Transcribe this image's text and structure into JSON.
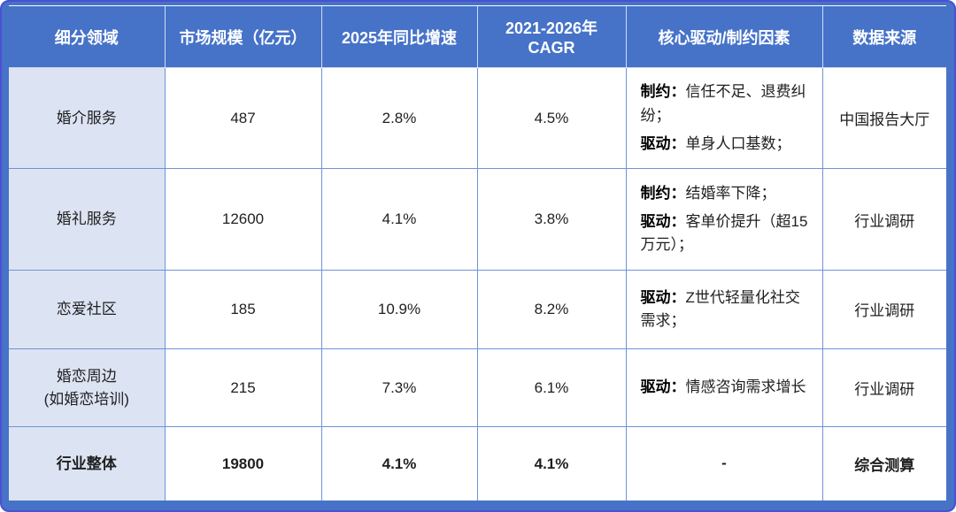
{
  "colors": {
    "header_bg": "#4673c8",
    "frame_bg": "#4673c8",
    "frame_edge": "#4b50d2",
    "segment_col_bg": "#dce4f3",
    "grid_line": "#6e93d6",
    "header_text": "#ffffff",
    "body_text": "#1f1f1f"
  },
  "chart_data": {
    "type": "table",
    "title": "",
    "columns": [
      "细分领域",
      "市场规模（亿元）",
      "2025年同比增速",
      "2021-2026年\nCAGR",
      "核心驱动/制约因素",
      "数据来源"
    ],
    "rows": [
      {
        "segment": "婚介服务",
        "market_size": "487",
        "yoy_2025": "2.8%",
        "cagr_2021_2026": "4.5%",
        "factors": [
          {
            "label": "制约：",
            "text": "信任不足、退费纠纷；"
          },
          {
            "label": "驱动：",
            "text": "单身人口基数；"
          }
        ],
        "dash": "",
        "source": "中国报告大厅",
        "emphasis": false
      },
      {
        "segment": "婚礼服务",
        "market_size": "12600",
        "yoy_2025": "4.1%",
        "cagr_2021_2026": "3.8%",
        "factors": [
          {
            "label": "制约：",
            "text": "结婚率下降；"
          },
          {
            "label": "驱动：",
            "text": "客单价提升（超15万元）；"
          }
        ],
        "dash": "",
        "source": "行业调研",
        "emphasis": false
      },
      {
        "segment": "恋爱社区",
        "market_size": "185",
        "yoy_2025": "10.9%",
        "cagr_2021_2026": "8.2%",
        "factors": [
          {
            "label": "驱动：",
            "text": "Z世代轻量化社交需求；"
          }
        ],
        "dash": "",
        "source": "行业调研",
        "emphasis": false
      },
      {
        "segment": "婚恋周边\n(如婚恋培训)",
        "market_size": "215",
        "yoy_2025": "7.3%",
        "cagr_2021_2026": "6.1%",
        "factors": [
          {
            "label": "驱动：",
            "text": "情感咨询需求增长"
          }
        ],
        "dash": "",
        "source": "行业调研",
        "emphasis": false
      },
      {
        "segment": "行业整体",
        "market_size": "19800",
        "yoy_2025": "4.1%",
        "cagr_2021_2026": "4.1%",
        "factors": [],
        "dash": "-",
        "source": "综合测算",
        "emphasis": true
      }
    ]
  }
}
